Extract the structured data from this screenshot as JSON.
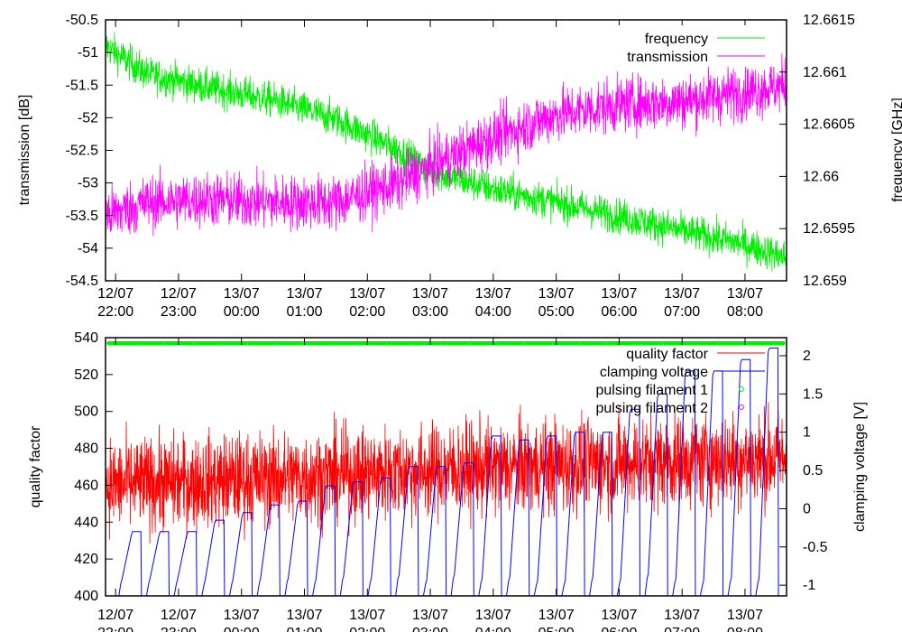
{
  "chart_data": [
    {
      "type": "line",
      "panel": "top",
      "ylabel": "transmission [dB]",
      "y2label": "frequency [GHz]",
      "ylim": [
        -54.5,
        -50.5
      ],
      "y2lim": [
        12.659,
        12.6615
      ],
      "xlim_hours": [
        21.84,
        32.66
      ],
      "yticks": [
        "-50.5",
        "-51",
        "-51.5",
        "-52",
        "-52.5",
        "-53",
        "-53.5",
        "-54",
        "-54.5"
      ],
      "y2ticks": [
        "12.6615",
        "12.661",
        "12.6605",
        "12.66",
        "12.6595",
        "12.659"
      ],
      "xticks": [
        {
          "date": "12/07",
          "time": "22:00"
        },
        {
          "date": "12/07",
          "time": "23:00"
        },
        {
          "date": "13/07",
          "time": "00:00"
        },
        {
          "date": "13/07",
          "time": "01:00"
        },
        {
          "date": "13/07",
          "time": "02:00"
        },
        {
          "date": "13/07",
          "time": "03:00"
        },
        {
          "date": "13/07",
          "time": "04:00"
        },
        {
          "date": "13/07",
          "time": "05:00"
        },
        {
          "date": "13/07",
          "time": "06:00"
        },
        {
          "date": "13/07",
          "time": "07:00"
        },
        {
          "date": "13/07",
          "time": "08:00"
        }
      ],
      "series": [
        {
          "name": "frequency",
          "axis": "y2",
          "color": "#00ee00",
          "trend_hours": [
            21.84,
            22.5,
            23.5,
            24.5,
            25.5,
            26.5,
            27,
            28,
            29,
            30,
            31,
            32,
            32.66
          ],
          "trend_values": [
            12.66125,
            12.66098,
            12.66085,
            12.66073,
            12.66055,
            12.66025,
            12.66005,
            12.65988,
            12.65975,
            12.65962,
            12.65948,
            12.65935,
            12.65922
          ],
          "noise": 0.00012
        },
        {
          "name": "transmission",
          "axis": "y",
          "color": "#ff00ff",
          "trend_hours": [
            21.84,
            22.5,
            23.5,
            24.5,
            25.5,
            26.5,
            27,
            28,
            29,
            30,
            31,
            32,
            32.66
          ],
          "trend_values": [
            -53.5,
            -53.3,
            -53.25,
            -53.3,
            -53.3,
            -53.0,
            -52.75,
            -52.3,
            -51.95,
            -51.8,
            -51.75,
            -51.6,
            -51.5
          ],
          "noise": 0.3
        }
      ]
    },
    {
      "type": "line",
      "panel": "bottom",
      "ylabel": "quality factor",
      "y2label": "clamping voltage [V]",
      "ylim": [
        400,
        540
      ],
      "y2lim": [
        -1.14,
        2.236
      ],
      "yticks": [
        "540",
        "520",
        "500",
        "480",
        "460",
        "440",
        "420",
        "400"
      ],
      "y2ticks": [
        "2",
        "1.5",
        "1",
        "0.5",
        "0",
        "-0.5",
        "-1"
      ],
      "series": [
        {
          "name": "quality factor",
          "axis": "y",
          "color": "#ff0000",
          "trend_hours": [
            21.84,
            24,
            27,
            30,
            32.66
          ],
          "trend_values": [
            460,
            463,
            468,
            472,
            475
          ],
          "noise": 18
        },
        {
          "name": "clamping voltage",
          "axis": "y2",
          "color": "#0000ff",
          "cycle_start_hour": 22.05,
          "cycle_period_hours": 0.44,
          "cycle_plateaus": [
            -0.3,
            -0.3,
            -0.3,
            -0.15,
            -0.05,
            0.05,
            0.1,
            0.3,
            0.35,
            0.4,
            0.55,
            0.55,
            0.6,
            0.95,
            0.9,
            0.95,
            1.0,
            1.0,
            1.3,
            1.5,
            1.8,
            1.8,
            1.95,
            2.1
          ]
        },
        {
          "name": "pulsing filament 1",
          "axis": "y",
          "color": "#00ee00",
          "value": 537
        },
        {
          "name": "pulsing filament 2",
          "axis": "y",
          "color": "#ff00ff"
        }
      ]
    }
  ]
}
